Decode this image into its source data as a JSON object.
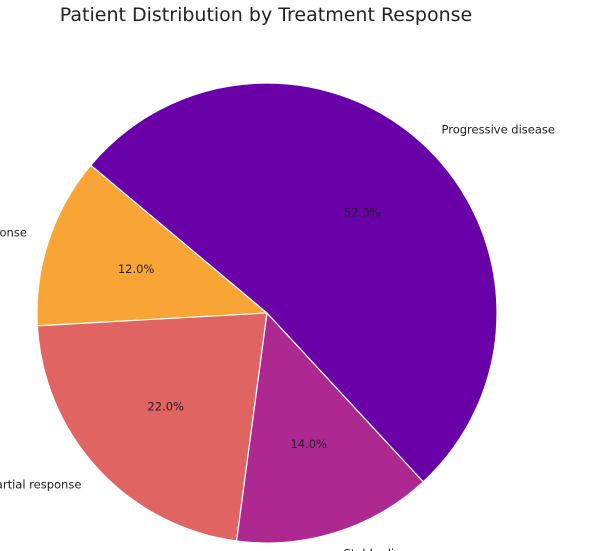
{
  "chart_data": {
    "type": "pie",
    "title": "Patient Distribution by Treatment Response",
    "slices": [
      {
        "label": "Complete response",
        "value": 12.0,
        "pct_text": "12.0%",
        "color": "#f9a535"
      },
      {
        "label": "Partial response",
        "value": 22.0,
        "pct_text": "22.0%",
        "color": "#e06461"
      },
      {
        "label": "Stable disease",
        "value": 14.0,
        "pct_text": "14.0%",
        "color": "#ae2892"
      },
      {
        "label": "Progressive disease",
        "value": 52.0,
        "pct_text": "52.0%",
        "color": "#6a00a8"
      }
    ],
    "start_angle_deg": 140,
    "direction": "counterclockwise",
    "legend": "none"
  }
}
